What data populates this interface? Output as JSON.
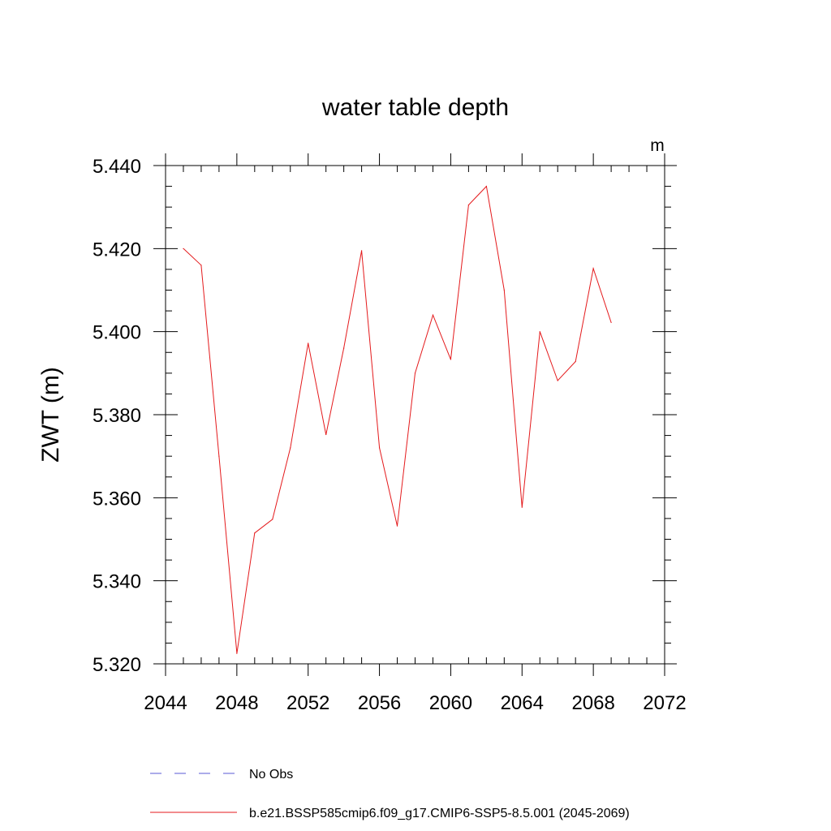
{
  "chart_data": {
    "type": "line",
    "title": "water table depth",
    "units": "m",
    "xlabel": "",
    "ylabel": "ZWT  (m)",
    "xlim": [
      2044,
      2072
    ],
    "ylim": [
      5.32,
      5.44
    ],
    "x_ticks": [
      2044,
      2048,
      2052,
      2056,
      2060,
      2064,
      2068,
      2072
    ],
    "y_ticks": [
      5.32,
      5.34,
      5.36,
      5.38,
      5.4,
      5.42,
      5.44
    ],
    "x_tick_labels": [
      "2044",
      "2048",
      "2052",
      "2056",
      "2060",
      "2064",
      "2068",
      "2072"
    ],
    "y_tick_labels": [
      "5.320",
      "5.340",
      "5.360",
      "5.380",
      "5.400",
      "5.420",
      "5.440"
    ],
    "x_minor_step": 1,
    "y_minor_step": 0.005,
    "grid": false,
    "series": [
      {
        "name": "b.e21.BSSP585cmip6.f09_g17.CMIP6-SSP5-8.5.001 (2045-2069)",
        "color": "#e41a1c",
        "x": [
          2045,
          2046,
          2047,
          2048,
          2049,
          2050,
          2051,
          2052,
          2053,
          2054,
          2055,
          2056,
          2057,
          2058,
          2059,
          2060,
          2061,
          2062,
          2063,
          2064,
          2065,
          2066,
          2067,
          2068,
          2069
        ],
        "values": [
          5.42,
          5.416,
          5.37,
          5.3225,
          5.3515,
          5.3548,
          5.372,
          5.3972,
          5.3752,
          5.396,
          5.4195,
          5.372,
          5.3532,
          5.39,
          5.404,
          5.3933,
          5.4305,
          5.435,
          5.41,
          5.3577,
          5.4,
          5.3882,
          5.3928,
          5.4152,
          5.4022
        ]
      }
    ],
    "legend": [
      {
        "label": "No Obs",
        "style": "dashed",
        "color": "#5a5ad6"
      },
      {
        "label": "b.e21.BSSP585cmip6.f09_g17.CMIP6-SSP5-8.5.001 (2045-2069)",
        "style": "solid",
        "color": "#e41a1c"
      }
    ]
  }
}
